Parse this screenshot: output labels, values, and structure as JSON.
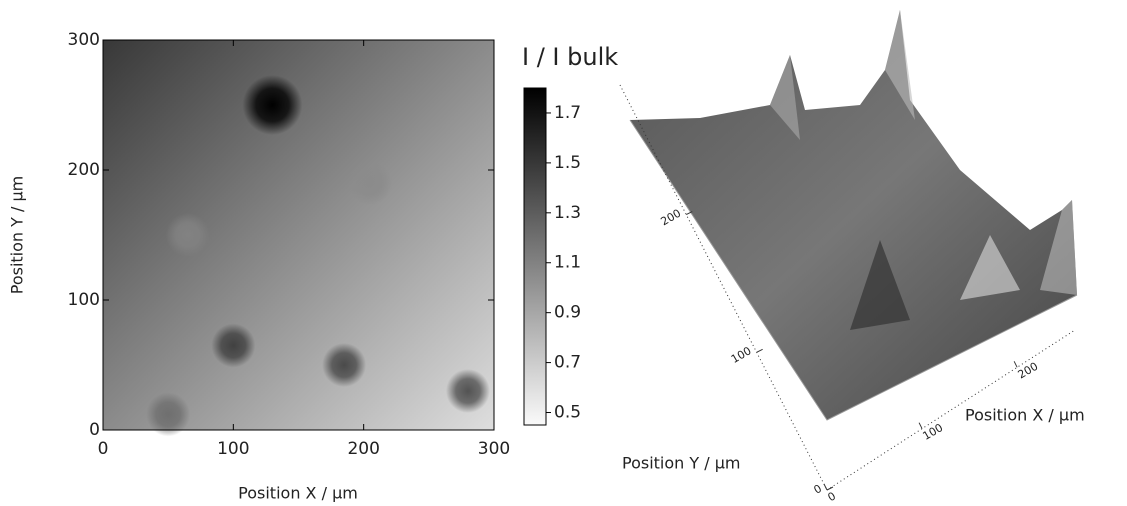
{
  "chart_data": {
    "type": "heatmap",
    "xlabel": "Position X / µm",
    "ylabel": "Position Y / µm",
    "xlim": [
      0,
      300
    ],
    "ylim": [
      0,
      300
    ],
    "xticks": [
      0,
      100,
      200,
      300
    ],
    "yticks": [
      0,
      100,
      200,
      300
    ],
    "colorbar_title": "I / I bulk",
    "clim": [
      0.45,
      1.8
    ],
    "colorbar_ticks": [
      0.5,
      0.7,
      0.9,
      1.1,
      1.3,
      1.5,
      1.7
    ],
    "field": {
      "start": 1.5,
      "end": 0.6
    },
    "spots": {
      "x": [
        130,
        100,
        185,
        280,
        50,
        205,
        65
      ],
      "y": [
        250,
        65,
        50,
        30,
        12,
        190,
        150
      ],
      "values": [
        1.8,
        1.45,
        1.4,
        1.35,
        1.2,
        1.05,
        1.1
      ]
    },
    "surface": {
      "xlabel": "Position X / µm",
      "ylabel": "Position Y / µm",
      "xticks": [
        0,
        100,
        200
      ],
      "yticks": [
        0,
        100,
        200
      ]
    }
  }
}
